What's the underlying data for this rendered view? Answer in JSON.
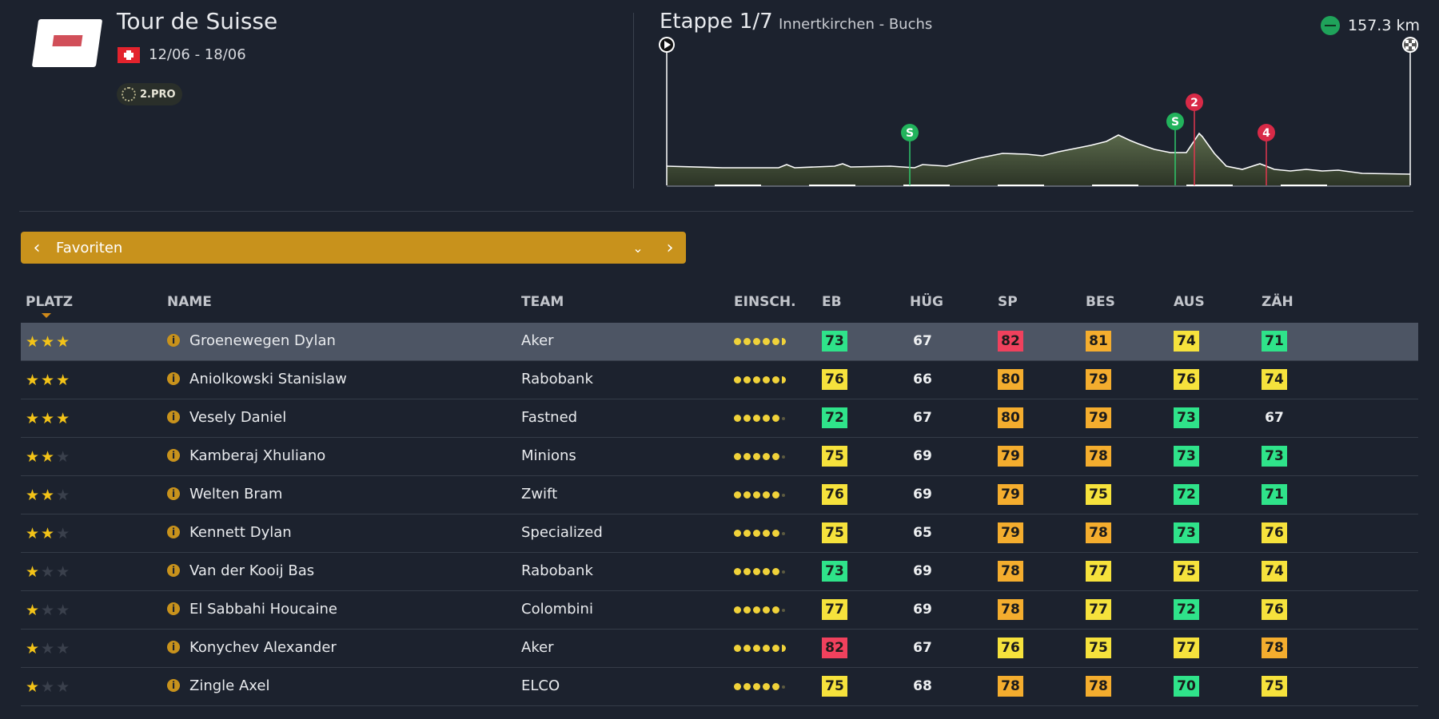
{
  "race": {
    "title": "Tour de Suisse",
    "dates": "12/06 - 18/06",
    "category": "2.PRO"
  },
  "stage": {
    "title": "Etappe 1/7",
    "route": "Innertkirchen - Buchs",
    "distance": "157.3 km",
    "sprint_label": "S",
    "climbs": [
      "2",
      "4"
    ]
  },
  "filter": {
    "label": "Favoriten"
  },
  "columns": {
    "platz": "PLATZ",
    "name": "NAME",
    "team": "TEAM",
    "einsch": "EINSCH.",
    "eb": "EB",
    "hug": "HÜG",
    "sp": "SP",
    "bes": "BES",
    "aus": "AUS",
    "zah": "ZÄH"
  },
  "colors": {
    "green": "#2fe38a",
    "yellow": "#f6e23c",
    "orange": "#f4ad2e",
    "red": "#f0415d",
    "accent": "#c8921c"
  },
  "riders": [
    {
      "stars": 3,
      "name": "Groenewegen Dylan",
      "team": "Aker",
      "rating": 5.5,
      "eb": "73",
      "hug": "67",
      "sp": "82",
      "bes": "81",
      "aus": "74",
      "zah": "71"
    },
    {
      "stars": 3,
      "name": "Aniolkowski Stanislaw",
      "team": "Rabobank",
      "rating": 5.5,
      "eb": "76",
      "hug": "66",
      "sp": "80",
      "bes": "79",
      "aus": "76",
      "zah": "74"
    },
    {
      "stars": 3,
      "name": "Vesely Daniel",
      "team": "Fastned",
      "rating": 5,
      "eb": "72",
      "hug": "67",
      "sp": "80",
      "bes": "79",
      "aus": "73",
      "zah": "67"
    },
    {
      "stars": 2,
      "name": "Kamberaj Xhuliano",
      "team": "Minions",
      "rating": 5,
      "eb": "75",
      "hug": "69",
      "sp": "79",
      "bes": "78",
      "aus": "73",
      "zah": "73"
    },
    {
      "stars": 2,
      "name": "Welten Bram",
      "team": "Zwift",
      "rating": 5,
      "eb": "76",
      "hug": "69",
      "sp": "79",
      "bes": "75",
      "aus": "72",
      "zah": "71"
    },
    {
      "stars": 2,
      "name": "Kennett Dylan",
      "team": "Specialized",
      "rating": 5,
      "eb": "75",
      "hug": "65",
      "sp": "79",
      "bes": "78",
      "aus": "73",
      "zah": "76"
    },
    {
      "stars": 1,
      "name": "Van der Kooij Bas",
      "team": "Rabobank",
      "rating": 5,
      "eb": "73",
      "hug": "69",
      "sp": "78",
      "bes": "77",
      "aus": "75",
      "zah": "74"
    },
    {
      "stars": 1,
      "name": "El Sabbahi Houcaine",
      "team": "Colombini",
      "rating": 5,
      "eb": "77",
      "hug": "69",
      "sp": "78",
      "bes": "77",
      "aus": "72",
      "zah": "76"
    },
    {
      "stars": 1,
      "name": "Konychev Alexander",
      "team": "Aker",
      "rating": 5.5,
      "eb": "82",
      "hug": "67",
      "sp": "76",
      "bes": "75",
      "aus": "77",
      "zah": "78"
    },
    {
      "stars": 1,
      "name": "Zingle Axel",
      "team": "ELCO",
      "rating": 5,
      "eb": "75",
      "hug": "68",
      "sp": "78",
      "bes": "78",
      "aus": "70",
      "zah": "75"
    }
  ]
}
